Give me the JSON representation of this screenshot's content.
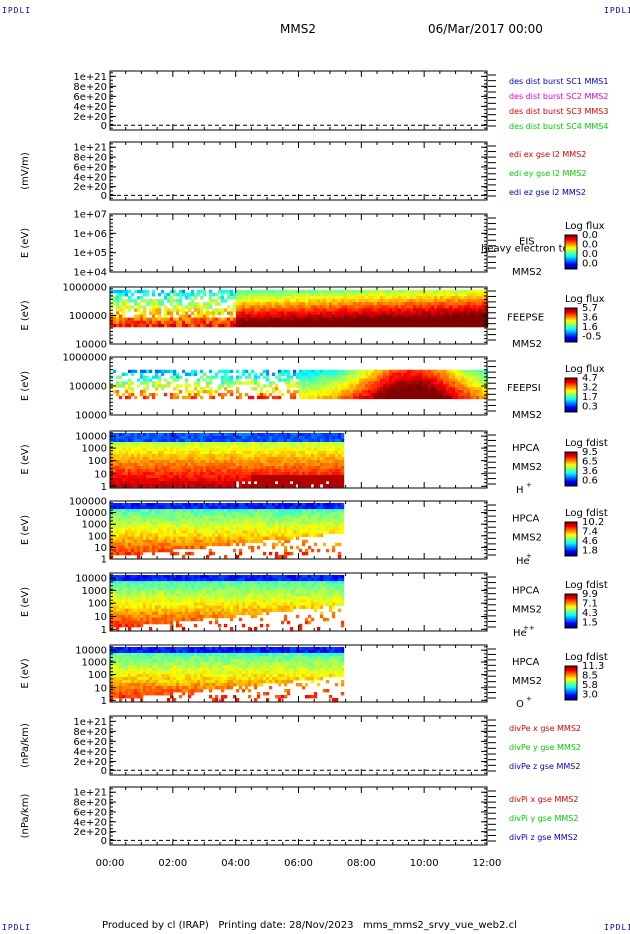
{
  "corners": {
    "tl": "IPDLI",
    "tr": "IPDLI",
    "bl": "IPDLI",
    "br": "IPDLI"
  },
  "header": {
    "title": "MMS2",
    "date": "06/Mar/2017 00:00"
  },
  "footer": {
    "text": "Produced by cl (IRAP)   Printing date: 28/Nov/2023   mms_mms2_srvy_vue_web2.cl"
  },
  "colors": {
    "red": "#dd0000",
    "magenta": "#dd00dd",
    "green": "#00cc00",
    "blue": "#0000cc"
  },
  "chart_data": [
    {
      "type": "line",
      "ylabel": "",
      "yticks": [
        "1e+21",
        "8e+20",
        "6e+20",
        "4e+20",
        "2e+20",
        "0"
      ],
      "ylim": [
        0,
        1e+21
      ],
      "xlim_hours": [
        0,
        12
      ],
      "series": [
        {
          "name": "des dist burst SC1 MMS1",
          "color": "#0000cc",
          "values": []
        },
        {
          "name": "des dist burst SC2 MMS2",
          "color": "#dd00dd",
          "values": []
        },
        {
          "name": "des dist burst SC3 MMS3",
          "color": "#dd0000",
          "values": []
        },
        {
          "name": "des dist burst SC4 MMS4",
          "color": "#00cc00",
          "values": []
        }
      ]
    },
    {
      "type": "line",
      "ylabel": "(mV/m)",
      "yticks": [
        "1e+21",
        "8e+20",
        "6e+20",
        "4e+20",
        "2e+20",
        "0"
      ],
      "ylim": [
        0,
        1e+21
      ],
      "xlim_hours": [
        0,
        12
      ],
      "series": [
        {
          "name": "edi ex gse l2 MMS2",
          "color": "#dd0000",
          "values": []
        },
        {
          "name": "edi ey gse l2 MMS2",
          "color": "#00cc00",
          "values": []
        },
        {
          "name": "edi ez gse l2 MMS2",
          "color": "#0000cc",
          "values": []
        }
      ]
    },
    {
      "type": "heatmap",
      "ylabel": "E (eV)",
      "yticks": [
        "1e+07",
        "1e+06",
        "1e+05",
        "1e+04"
      ],
      "ylim": [
        10000,
        10000000
      ],
      "xlim_hours": [
        0,
        12
      ],
      "instrument": "EIS",
      "sc": "MMS2",
      "overlay": "heavy electron to",
      "colorbar": {
        "title": "Log flux",
        "ticks": [
          "0.0",
          "0.0",
          "0.0",
          "0.0"
        ]
      },
      "data_end_hour": 0
    },
    {
      "type": "heatmap",
      "ylabel": "E (eV)",
      "yticks": [
        "1000000",
        "100000",
        "10000"
      ],
      "ylim": [
        10000,
        1000000
      ],
      "xlim_hours": [
        0,
        12
      ],
      "instrument": "FEEPSE",
      "sc": "MMS2",
      "colorbar": {
        "title": "Log flux",
        "ticks": [
          "5.7",
          "3.6",
          "1.6",
          "-0.5"
        ]
      },
      "data_end_hour": 12
    },
    {
      "type": "heatmap",
      "ylabel": "E (eV)",
      "yticks": [
        "1000000",
        "100000",
        "10000"
      ],
      "ylim": [
        10000,
        1000000
      ],
      "xlim_hours": [
        0,
        12
      ],
      "instrument": "FEEPSI",
      "sc": "MMS2",
      "colorbar": {
        "title": "Log flux",
        "ticks": [
          "4.7",
          "3.2",
          "1.7",
          "0.3"
        ]
      },
      "data_end_hour": 12
    },
    {
      "type": "heatmap",
      "ylabel": "E (eV)",
      "yticks": [
        "10000",
        "1000",
        "100",
        "10",
        "1"
      ],
      "ylim": [
        1,
        40000
      ],
      "xlim_hours": [
        0,
        12
      ],
      "instrument": "HPCA",
      "sc": "MMS2",
      "species": "H",
      "charge": "+",
      "colorbar": {
        "title": "Log fdist",
        "ticks": [
          "9.5",
          "6.5",
          "3.6",
          "0.6"
        ]
      },
      "data_end_hour": 7.45
    },
    {
      "type": "heatmap",
      "ylabel": "E (eV)",
      "yticks": [
        "100000",
        "10000",
        "1000",
        "100",
        "10",
        "1"
      ],
      "ylim": [
        1,
        100000
      ],
      "xlim_hours": [
        0,
        12
      ],
      "instrument": "HPCA",
      "sc": "MMS2",
      "species": "He",
      "charge": "+",
      "colorbar": {
        "title": "Log fdist",
        "ticks": [
          "10.2",
          "7.4",
          "4.6",
          "1.8"
        ]
      },
      "data_end_hour": 7.45
    },
    {
      "type": "heatmap",
      "ylabel": "E (eV)",
      "yticks": [
        "10000",
        "1000",
        "100",
        "10",
        "1"
      ],
      "ylim": [
        1,
        40000
      ],
      "xlim_hours": [
        0,
        12
      ],
      "instrument": "HPCA",
      "sc": "MMS2",
      "species": "He",
      "charge": "++",
      "colorbar": {
        "title": "Log fdist",
        "ticks": [
          "9.9",
          "7.1",
          "4.3",
          "1.5"
        ]
      },
      "data_end_hour": 7.45
    },
    {
      "type": "heatmap",
      "ylabel": "E (eV)",
      "yticks": [
        "10000",
        "1000",
        "100",
        "10",
        "1"
      ],
      "ylim": [
        1,
        40000
      ],
      "xlim_hours": [
        0,
        12
      ],
      "instrument": "HPCA",
      "sc": "MMS2",
      "species": "O",
      "charge": "+",
      "colorbar": {
        "title": "Log fdist",
        "ticks": [
          "11.3",
          "8.5",
          "5.8",
          "3.0"
        ]
      },
      "data_end_hour": 7.45
    },
    {
      "type": "line",
      "ylabel": "(nPa/km)",
      "yticks": [
        "1e+21",
        "8e+20",
        "6e+20",
        "4e+20",
        "2e+20",
        "0"
      ],
      "ylim": [
        0,
        1e+21
      ],
      "xlim_hours": [
        0,
        12
      ],
      "series": [
        {
          "name": "divPe x gse MMS2",
          "color": "#dd0000",
          "values": []
        },
        {
          "name": "divPe y gse MMS2",
          "color": "#00cc00",
          "values": []
        },
        {
          "name": "divPe z gse MMS2",
          "color": "#0000cc",
          "values": []
        }
      ]
    },
    {
      "type": "line",
      "ylabel": "(nPa/km)",
      "yticks": [
        "1e+21",
        "8e+20",
        "6e+20",
        "4e+20",
        "2e+20",
        "0"
      ],
      "ylim": [
        0,
        1e+21
      ],
      "xlim_hours": [
        0,
        12
      ],
      "series": [
        {
          "name": "divPi x gse MMS2",
          "color": "#dd0000",
          "values": []
        },
        {
          "name": "divPi y gse MMS2",
          "color": "#00cc00",
          "values": []
        },
        {
          "name": "divPi z gse MMS2",
          "color": "#0000cc",
          "values": []
        }
      ]
    }
  ],
  "x_axis": {
    "ticks": [
      "00:00",
      "02:00",
      "04:00",
      "06:00",
      "08:00",
      "10:00",
      "12:00"
    ]
  }
}
